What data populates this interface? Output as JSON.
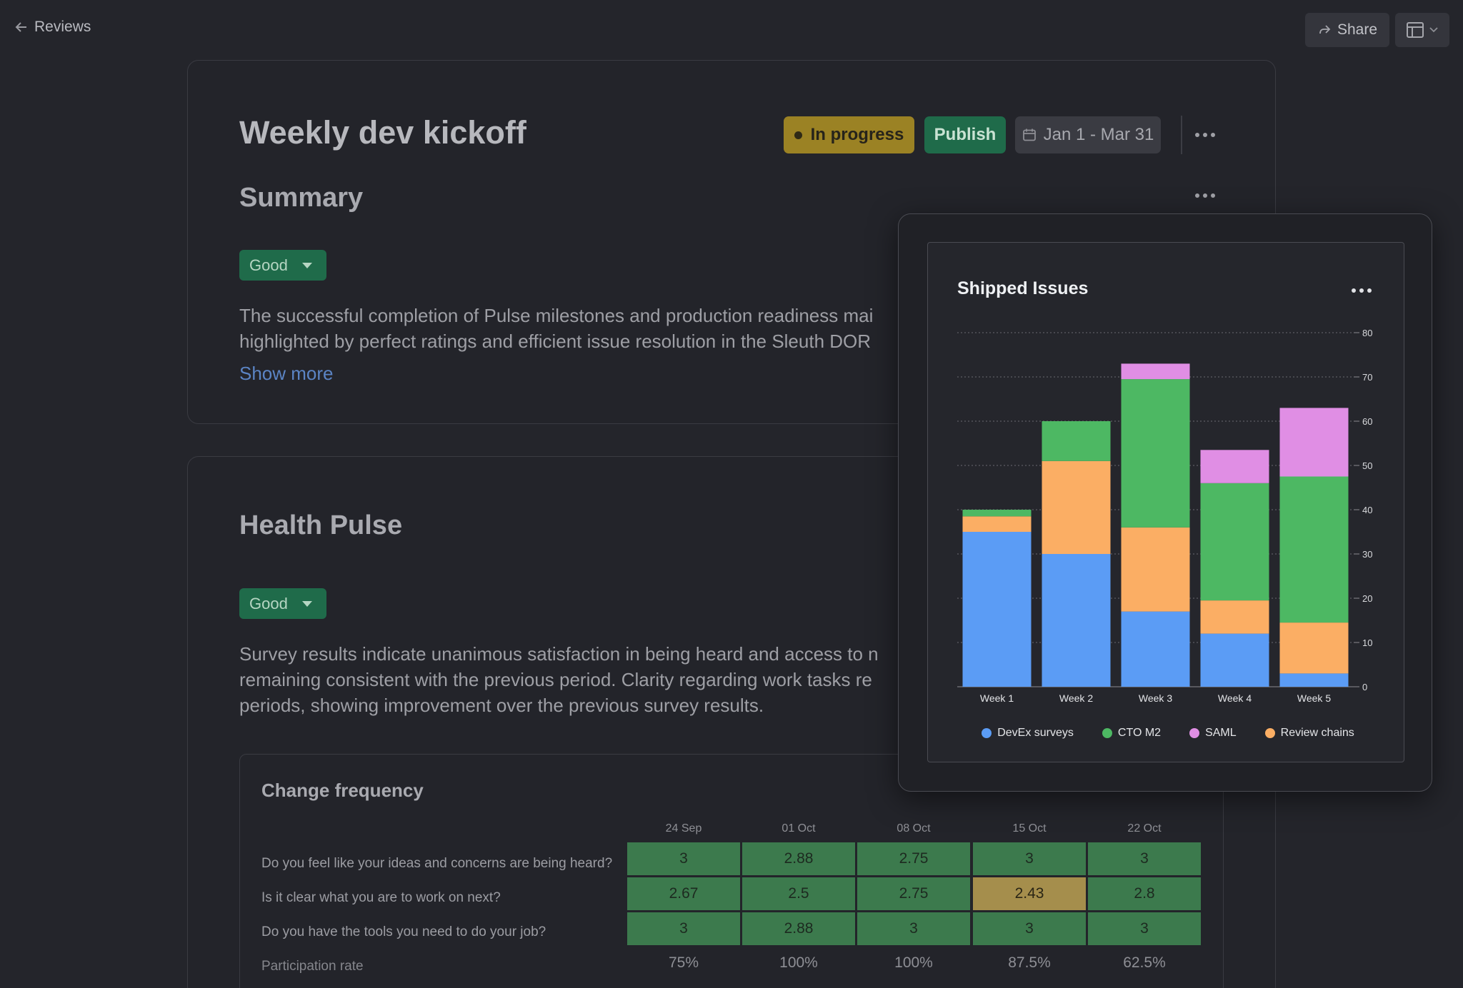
{
  "topbar": {
    "back_label": "Reviews",
    "share_label": "Share"
  },
  "header": {
    "title": "Weekly dev kickoff",
    "status": "In progress",
    "publish_label": "Publish",
    "date_range": "Jan 1 - Mar 31"
  },
  "summary": {
    "title": "Summary",
    "rating": "Good",
    "text_lines": [
      "The successful completion of Pulse milestones and production readiness mai",
      "highlighted by perfect ratings and efficient issue resolution in the Sleuth DOR"
    ],
    "show_more": "Show more"
  },
  "health": {
    "title": "Health Pulse",
    "rating": "Good",
    "text_lines": [
      "Survey results indicate unanimous satisfaction in being heard and access to n",
      "remaining consistent with the previous period. Clarity regarding work tasks re",
      "periods, showing improvement over the previous survey results."
    ]
  },
  "change_frequency": {
    "title": "Change frequency",
    "columns": [
      "24 Sep",
      "01 Oct",
      "08 Oct",
      "15 Oct",
      "22 Oct"
    ],
    "rows": [
      {
        "question": "Do you feel like your ideas and concerns are being heard?",
        "values": [
          "3",
          "2.88",
          "2.75",
          "3",
          "3"
        ],
        "status": [
          "good",
          "good",
          "good",
          "good",
          "good"
        ]
      },
      {
        "question": "Is it clear what you are to work on next?",
        "values": [
          "2.67",
          "2.5",
          "2.75",
          "2.43",
          "2.8"
        ],
        "status": [
          "good",
          "good",
          "good",
          "warn",
          "good"
        ]
      },
      {
        "question": "Do you have the tools you need to do your job?",
        "values": [
          "3",
          "2.88",
          "3",
          "3",
          "3"
        ],
        "status": [
          "good",
          "good",
          "good",
          "good",
          "good"
        ]
      }
    ],
    "participation_label": "Participation rate",
    "participation": [
      "75%",
      "100%",
      "100%",
      "87.5%",
      "62.5%"
    ]
  },
  "colors": {
    "good": "#3c7a4d",
    "warn": "#a58e4c",
    "status_pill": "#9b8224",
    "publish": "#1f6b4a"
  },
  "chart_data": {
    "type": "bar",
    "stacked": true,
    "title": "Shipped Issues",
    "categories": [
      "Week 1",
      "Week 2",
      "Week 3",
      "Week 4",
      "Week 5"
    ],
    "series": [
      {
        "name": "DevEx surveys",
        "color": "#5b9cf5",
        "values": [
          35,
          30,
          17,
          12,
          3
        ]
      },
      {
        "name": "Review chains",
        "color": "#fbae64",
        "values": [
          3.5,
          21,
          19,
          7.5,
          11.5
        ]
      },
      {
        "name": "CTO M2",
        "color": "#4db863",
        "values": [
          1.5,
          9,
          33.5,
          26.5,
          33
        ]
      },
      {
        "name": "SAML",
        "color": "#e08ee4",
        "values": [
          0,
          0,
          3.5,
          7.5,
          15.5
        ]
      }
    ],
    "legend_order": [
      "DevEx surveys",
      "CTO M2",
      "SAML",
      "Review chains"
    ],
    "ylim": [
      0,
      80
    ],
    "yticks": [
      0,
      10,
      20,
      30,
      40,
      50,
      60,
      70,
      80
    ],
    "y_axis_side": "right",
    "grid": true,
    "legend_position": "bottom"
  }
}
